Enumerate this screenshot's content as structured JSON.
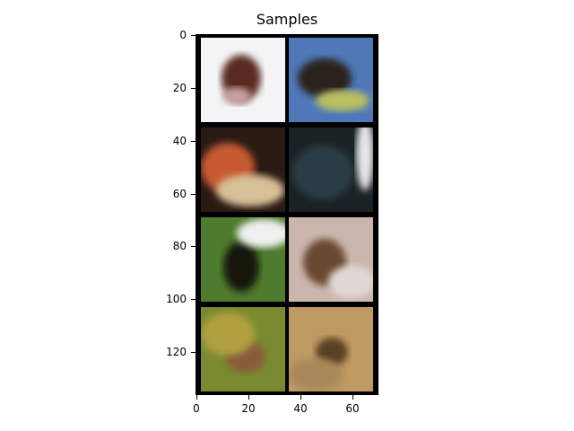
{
  "figure": {
    "title": "Samples",
    "x_ticks": [
      "0",
      "20",
      "40",
      "60"
    ],
    "y_ticks": [
      "0",
      "20",
      "40",
      "60",
      "80",
      "100",
      "120"
    ]
  },
  "images": [
    {
      "name": "sample-1",
      "bg": "#f4f4f6",
      "blobs": [
        {
          "c": "#5a2a22"
        },
        {
          "c": "#c8a0a0"
        }
      ]
    },
    {
      "name": "sample-2",
      "bg": "#4f78b8",
      "blobs": [
        {
          "c": "#2a241c"
        },
        {
          "c": "#b8c060"
        }
      ]
    },
    {
      "name": "sample-3",
      "bg": "#2b1a14",
      "blobs": [
        {
          "c": "#c85a30"
        },
        {
          "c": "#d8c098"
        }
      ]
    },
    {
      "name": "sample-4",
      "bg": "#1b2226",
      "blobs": [
        {
          "c": "#2a3d45"
        },
        {
          "c": "#e6e6ea"
        }
      ]
    },
    {
      "name": "sample-5",
      "bg": "#4f7b2e",
      "blobs": [
        {
          "c": "#121410"
        },
        {
          "c": "#f0f0f0"
        }
      ]
    },
    {
      "name": "sample-6",
      "bg": "#cbb6ae",
      "blobs": [
        {
          "c": "#6a4a30"
        },
        {
          "c": "#e0d8d6"
        }
      ]
    },
    {
      "name": "sample-7",
      "bg": "#7a8a30",
      "blobs": [
        {
          "c": "#8a5a3a"
        },
        {
          "c": "#b0a040"
        }
      ]
    },
    {
      "name": "sample-8",
      "bg": "#bf9a62",
      "blobs": [
        {
          "c": "#5a4020"
        },
        {
          "c": "#a88858"
        }
      ]
    }
  ]
}
